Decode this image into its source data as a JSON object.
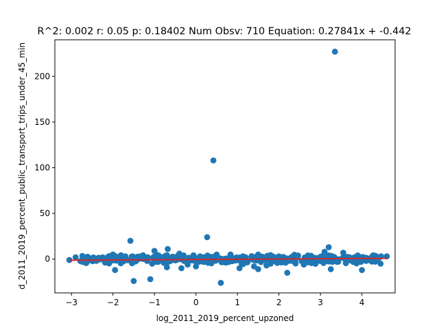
{
  "chart_data": {
    "type": "scatter",
    "title": "R^2: 0.002 r: 0.05 p: 0.18402 Num Obsv: 710 Equation: 0.27841x + -0.442",
    "xlabel": "log_2011_2019_percent_upzoned",
    "ylabel": "d_2011_2019_percent_public_transport_trips_under_45_min",
    "xlim": [
      -3.4,
      4.8
    ],
    "ylim": [
      -37,
      240
    ],
    "x_ticks": [
      -3,
      -2,
      -1,
      0,
      1,
      2,
      3,
      4
    ],
    "x_tick_labels": [
      "−3",
      "−2",
      "−1",
      "0",
      "1",
      "2",
      "3",
      "4"
    ],
    "y_ticks": [
      0,
      50,
      100,
      150,
      200
    ],
    "y_tick_labels": [
      "0",
      "50",
      "100",
      "150",
      "200"
    ],
    "grid": false,
    "marker_color": "#1f77b4",
    "line_color": "#d62728",
    "regression": {
      "slope": 0.27841,
      "intercept": -0.442,
      "x_range": [
        -3.05,
        4.6
      ]
    },
    "points": [
      {
        "x": 3.35,
        "y": 227
      },
      {
        "x": 0.42,
        "y": 108
      },
      {
        "x": 0.27,
        "y": 24
      },
      {
        "x": -1.58,
        "y": 20
      },
      {
        "x": 3.2,
        "y": 13
      },
      {
        "x": 3.55,
        "y": 7
      },
      {
        "x": 3.1,
        "y": 8
      },
      {
        "x": -0.68,
        "y": 11
      },
      {
        "x": -1.0,
        "y": 9
      },
      {
        "x": -0.4,
        "y": 6
      },
      {
        "x": 1.5,
        "y": 5
      },
      {
        "x": 2.7,
        "y": 4
      },
      {
        "x": -2.0,
        "y": 5
      },
      {
        "x": 0.5,
        "y": 5
      },
      {
        "x": 3.9,
        "y": 4
      },
      {
        "x": -1.5,
        "y": -24
      },
      {
        "x": -1.1,
        "y": -22
      },
      {
        "x": 0.6,
        "y": -26
      },
      {
        "x": 2.2,
        "y": -15
      },
      {
        "x": 4.0,
        "y": -12
      },
      {
        "x": -1.95,
        "y": -12
      },
      {
        "x": 1.05,
        "y": -10
      },
      {
        "x": 1.5,
        "y": -11
      },
      {
        "x": 3.25,
        "y": -11
      },
      {
        "x": 1.4,
        "y": -8
      },
      {
        "x": -0.35,
        "y": -10
      },
      {
        "x": -0.7,
        "y": -9
      },
      {
        "x": -3.05,
        "y": -1
      },
      {
        "x": -2.9,
        "y": 2
      },
      {
        "x": -2.7,
        "y": 2
      },
      {
        "x": 4.6,
        "y": 3
      },
      {
        "x": 4.45,
        "y": -5
      },
      {
        "x": 4.3,
        "y": 0
      },
      {
        "x": -2.4,
        "y": -2
      },
      {
        "x": -2.2,
        "y": 1
      },
      {
        "x": -1.8,
        "y": -4
      },
      {
        "x": -1.3,
        "y": 2
      },
      {
        "x": -0.2,
        "y": -6
      },
      {
        "x": 0.1,
        "y": 3
      },
      {
        "x": 0.8,
        "y": -3
      },
      {
        "x": 1.2,
        "y": 2
      },
      {
        "x": 1.8,
        "y": -5
      },
      {
        "x": 2.0,
        "y": 3
      },
      {
        "x": 2.4,
        "y": -4
      },
      {
        "x": 2.9,
        "y": 1
      },
      {
        "x": 3.4,
        "y": -3
      },
      {
        "x": 3.7,
        "y": 2
      },
      {
        "x": 4.1,
        "y": -2
      },
      {
        "x": 0.0,
        "y": -8
      },
      {
        "x": -0.9,
        "y": 4
      },
      {
        "x": 1.7,
        "y": -7
      },
      {
        "x": 2.6,
        "y": -6
      },
      {
        "x": -1.7,
        "y": 3
      },
      {
        "x": 0.3,
        "y": -4
      }
    ],
    "dense_band": {
      "x_range": [
        -2.8,
        4.5
      ],
      "y_spread": 3.5,
      "count": 400
    }
  }
}
